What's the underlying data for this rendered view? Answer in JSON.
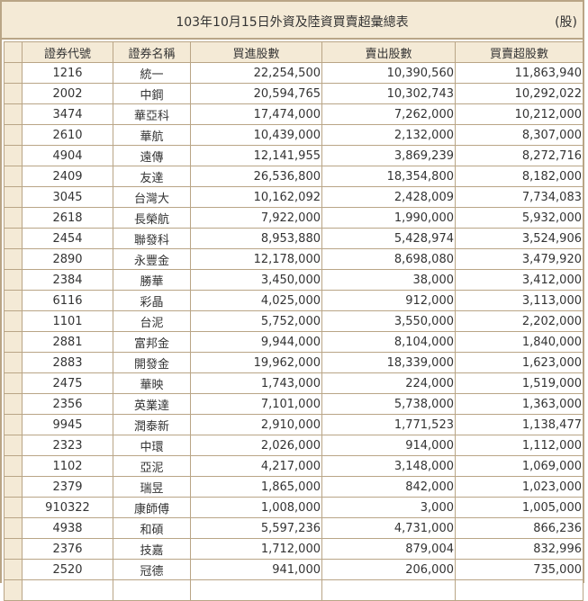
{
  "report": {
    "title": "103年10月15日外資及陸資買賣超彙總表",
    "unit": "(股)"
  },
  "table": {
    "headers": [
      "證券代號",
      "證券名稱",
      "買進股數",
      "賣出股數",
      "買賣超股數"
    ],
    "rows": [
      [
        "1216",
        "統一",
        "22,254,500",
        "10,390,560",
        "11,863,940"
      ],
      [
        "2002",
        "中鋼",
        "20,594,765",
        "10,302,743",
        "10,292,022"
      ],
      [
        "3474",
        "華亞科",
        "17,474,000",
        "7,262,000",
        "10,212,000"
      ],
      [
        "2610",
        "華航",
        "10,439,000",
        "2,132,000",
        "8,307,000"
      ],
      [
        "4904",
        "遠傳",
        "12,141,955",
        "3,869,239",
        "8,272,716"
      ],
      [
        "2409",
        "友達",
        "26,536,800",
        "18,354,800",
        "8,182,000"
      ],
      [
        "3045",
        "台灣大",
        "10,162,092",
        "2,428,009",
        "7,734,083"
      ],
      [
        "2618",
        "長榮航",
        "7,922,000",
        "1,990,000",
        "5,932,000"
      ],
      [
        "2454",
        "聯發科",
        "8,953,880",
        "5,428,974",
        "3,524,906"
      ],
      [
        "2890",
        "永豐金",
        "12,178,000",
        "8,698,080",
        "3,479,920"
      ],
      [
        "2384",
        "勝華",
        "3,450,000",
        "38,000",
        "3,412,000"
      ],
      [
        "6116",
        "彩晶",
        "4,025,000",
        "912,000",
        "3,113,000"
      ],
      [
        "1101",
        "台泥",
        "5,752,000",
        "3,550,000",
        "2,202,000"
      ],
      [
        "2881",
        "富邦金",
        "9,944,000",
        "8,104,000",
        "1,840,000"
      ],
      [
        "2883",
        "開發金",
        "19,962,000",
        "18,339,000",
        "1,623,000"
      ],
      [
        "2475",
        "華映",
        "1,743,000",
        "224,000",
        "1,519,000"
      ],
      [
        "2356",
        "英業達",
        "7,101,000",
        "5,738,000",
        "1,363,000"
      ],
      [
        "9945",
        "潤泰新",
        "2,910,000",
        "1,771,523",
        "1,138,477"
      ],
      [
        "2323",
        "中環",
        "2,026,000",
        "914,000",
        "1,112,000"
      ],
      [
        "1102",
        "亞泥",
        "4,217,000",
        "3,148,000",
        "1,069,000"
      ],
      [
        "2379",
        "瑞昱",
        "1,865,000",
        "842,000",
        "1,023,000"
      ],
      [
        "910322",
        "康師傅",
        "1,008,000",
        "3,000",
        "1,005,000"
      ],
      [
        "4938",
        "和碩",
        "5,597,236",
        "4,731,000",
        "866,236"
      ],
      [
        "2376",
        "技嘉",
        "1,712,000",
        "879,004",
        "832,996"
      ],
      [
        "2520",
        "冠德",
        "941,000",
        "206,000",
        "735,000"
      ],
      [
        "",
        "",
        "",
        "",
        ""
      ]
    ]
  }
}
